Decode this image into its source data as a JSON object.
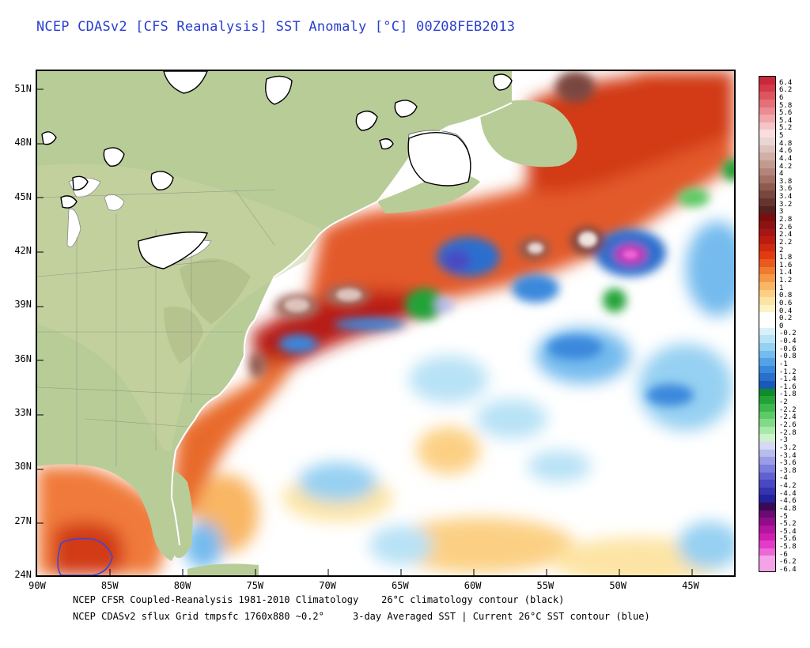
{
  "title": "NCEP CDASv2 [CFS Reanalysis] SST Anomaly [°C] 00Z08FEB2013",
  "lat_labels": [
    "51N",
    "48N",
    "45N",
    "42N",
    "39N",
    "36N",
    "33N",
    "30N",
    "27N",
    "24N"
  ],
  "lat_values": [
    51,
    48,
    45,
    42,
    39,
    36,
    33,
    30,
    27,
    24
  ],
  "lon_labels": [
    "90W",
    "85W",
    "80W",
    "75W",
    "70W",
    "65W",
    "60W",
    "55W",
    "50W",
    "45W"
  ],
  "lon_values": [
    -90,
    -85,
    -80,
    -75,
    -70,
    -65,
    -60,
    -55,
    -50,
    -45
  ],
  "map_extent": {
    "lon_min": -90,
    "lon_max": -42,
    "lat_min": 24,
    "lat_max": 52
  },
  "footnotes": {
    "line1": "NCEP CFSR Coupled-Reanalysis 1981-2010 Climatology    26°C climatology contour (black)",
    "line2": "NCEP CDASv2 sflux Grid tmpsfc 1760x880 ~0.2°     3-day Averaged SST | Current 26°C SST contour (blue)"
  },
  "colorbar": {
    "labels": [
      "6.4",
      "6.2",
      "6",
      "5.8",
      "5.6",
      "5.4",
      "5.2",
      "5",
      "4.8",
      "4.6",
      "4.4",
      "4.2",
      "4",
      "3.8",
      "3.6",
      "3.4",
      "3.2",
      "3",
      "2.8",
      "2.6",
      "2.4",
      "2.2",
      "2",
      "1.8",
      "1.6",
      "1.4",
      "1.2",
      "1",
      "0.8",
      "0.6",
      "0.4",
      "0.2",
      "0",
      "-0.2",
      "-0.4",
      "-0.6",
      "-0.8",
      "-1",
      "-1.2",
      "-1.4",
      "-1.6",
      "-1.8",
      "-2",
      "-2.2",
      "-2.4",
      "-2.6",
      "-2.8",
      "-3",
      "-3.2",
      "-3.4",
      "-3.6",
      "-3.8",
      "-4",
      "-4.2",
      "-4.4",
      "-4.6",
      "-4.8",
      "-5",
      "-5.2",
      "-5.4",
      "-5.6",
      "-5.8",
      "-6",
      "-6.2",
      "-6.4"
    ],
    "colors": [
      "#c8283a",
      "#d43a4a",
      "#dd5560",
      "#e47078",
      "#ea8c92",
      "#f0a8ac",
      "#f5c4c6",
      "#f8dede",
      "#e9d6d2",
      "#ddc3bc",
      "#d0afa6",
      "#c29a90",
      "#b3857a",
      "#a27065",
      "#8f5b51",
      "#7a473f",
      "#65342e",
      "#54221f",
      "#7a0e0e",
      "#8f1212",
      "#a61616",
      "#bc1c10",
      "#d02a0e",
      "#e03c12",
      "#ea5a1e",
      "#f07a30",
      "#f59848",
      "#f9b664",
      "#fcd084",
      "#fde4a4",
      "#fef2c4",
      "#ffffff",
      "#ffffff",
      "#d8f0fa",
      "#b8e2f6",
      "#96d0f2",
      "#74bbee",
      "#54a2e6",
      "#3a88dc",
      "#2a6ece",
      "#185ab8",
      "#118a2a",
      "#22a338",
      "#3cb84c",
      "#5ccb66",
      "#82da86",
      "#a8e8a8",
      "#ccf2cc",
      "#d6d8f4",
      "#b8bcee",
      "#9a9de6",
      "#7c7edc",
      "#6060d0",
      "#4848c2",
      "#3434b0",
      "#24229c",
      "#3a0a56",
      "#6a0a72",
      "#900c88",
      "#b4149e",
      "#d01eb2",
      "#e23cc6",
      "#ec68d6",
      "#f4a4e6",
      "#f4a4e6"
    ]
  }
}
